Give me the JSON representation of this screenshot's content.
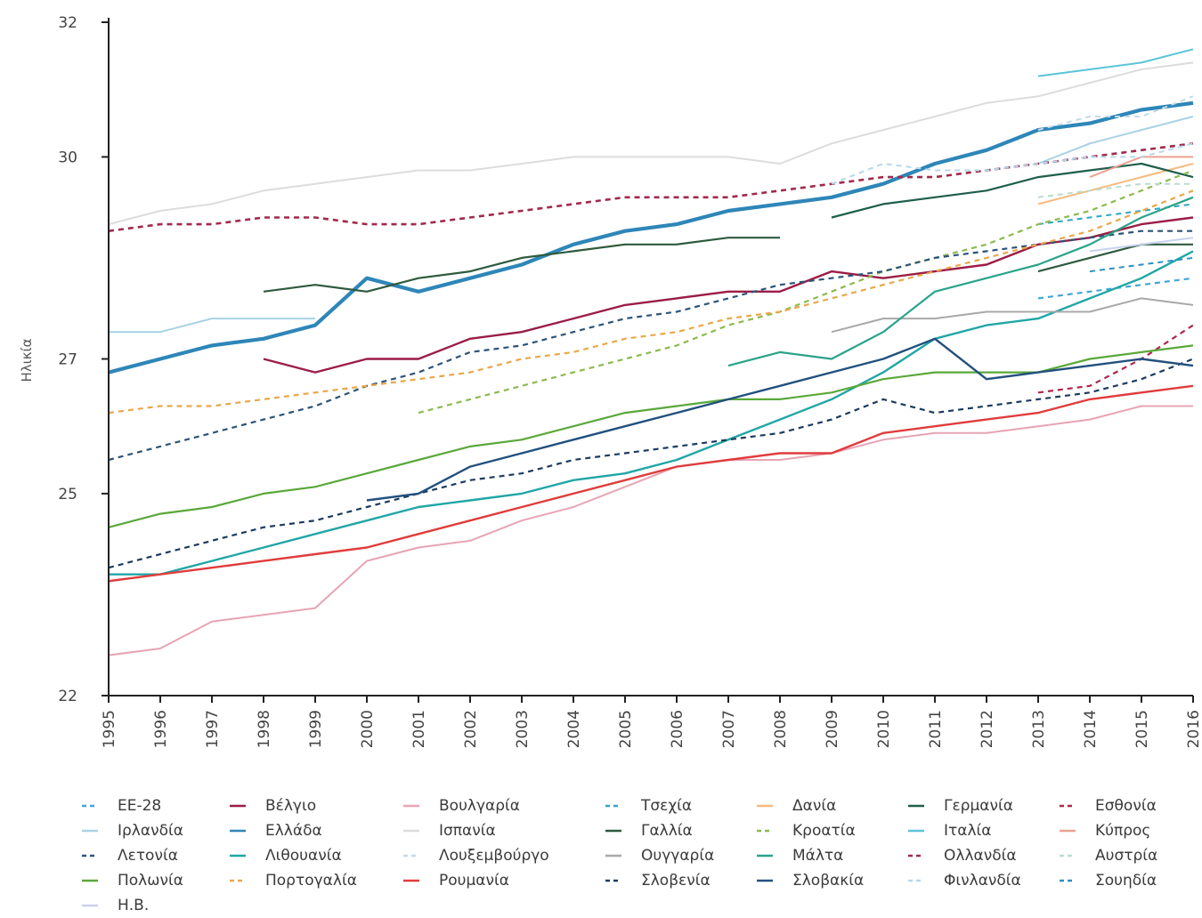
{
  "chart_data": {
    "type": "line",
    "title": "",
    "xlabel": "",
    "ylabel": "Ηλικία",
    "x": [
      1995,
      1996,
      1997,
      1998,
      1999,
      2000,
      2001,
      2002,
      2003,
      2004,
      2005,
      2006,
      2007,
      2008,
      2009,
      2010,
      2011,
      2012,
      2013,
      2014,
      2015,
      2016
    ],
    "xlim": [
      1995,
      2016
    ],
    "ylim": [
      22,
      32
    ],
    "y_ticks": [
      22,
      25,
      27,
      30,
      32
    ],
    "grid": false,
    "legend_position": "bottom",
    "series": [
      {
        "name": "ΕΕ-28",
        "color": "#41a7d6",
        "dash": true,
        "width": 2.2,
        "values": [
          null,
          null,
          null,
          null,
          null,
          null,
          null,
          null,
          null,
          null,
          null,
          null,
          null,
          null,
          null,
          null,
          null,
          null,
          27.9,
          28.0,
          28.1,
          28.2
        ]
      },
      {
        "name": "Βέλγιο",
        "color": "#9b1d45",
        "dash": false,
        "width": 2.4,
        "values": [
          null,
          null,
          null,
          27.0,
          26.8,
          27.0,
          27.0,
          27.3,
          27.4,
          27.6,
          27.8,
          27.9,
          28.0,
          28.0,
          28.3,
          28.2,
          28.3,
          28.4,
          28.7,
          28.8,
          29.0,
          29.1
        ]
      },
      {
        "name": "Βουλγαρία",
        "color": "#e7a4b4",
        "dash": false,
        "width": 2.0,
        "values": [
          22.6,
          22.7,
          23.1,
          23.2,
          23.3,
          24.0,
          24.2,
          24.3,
          24.6,
          24.8,
          25.1,
          25.4,
          25.5,
          25.5,
          25.6,
          25.8,
          25.9,
          25.9,
          26.0,
          26.1,
          26.3,
          26.3
        ]
      },
      {
        "name": "Τσεχία",
        "color": "#2da6c4",
        "dash": true,
        "width": 2.0,
        "values": [
          null,
          null,
          null,
          null,
          null,
          null,
          null,
          null,
          null,
          null,
          null,
          null,
          null,
          null,
          null,
          null,
          null,
          null,
          29.0,
          29.1,
          29.2,
          29.3
        ]
      },
      {
        "name": "Δανία",
        "color": "#f5bb7e",
        "dash": false,
        "width": 2.0,
        "values": [
          null,
          null,
          null,
          null,
          null,
          null,
          null,
          null,
          null,
          28.6,
          28.7,
          null,
          null,
          null,
          null,
          null,
          null,
          null,
          29.3,
          29.5,
          29.7,
          29.9
        ]
      },
      {
        "name": "Γερμανία",
        "color": "#1f5e4c",
        "dash": false,
        "width": 2.2,
        "values": [
          null,
          null,
          null,
          null,
          null,
          null,
          null,
          null,
          null,
          null,
          null,
          null,
          null,
          null,
          29.1,
          29.3,
          29.4,
          29.5,
          29.7,
          29.8,
          29.9,
          29.7
        ]
      },
      {
        "name": "Εσθονία",
        "color": "#b0254a",
        "dash": true,
        "width": 2.2,
        "values": [
          null,
          null,
          null,
          null,
          null,
          null,
          null,
          null,
          null,
          null,
          null,
          null,
          null,
          null,
          null,
          null,
          null,
          null,
          26.5,
          26.6,
          27.0,
          27.5
        ]
      },
      {
        "name": "Ιρλανδία",
        "color": "#a9d2e4",
        "dash": false,
        "width": 2.0,
        "values": [
          27.4,
          27.4,
          27.6,
          27.6,
          27.6,
          null,
          null,
          null,
          null,
          null,
          null,
          null,
          null,
          null,
          null,
          null,
          null,
          null,
          29.9,
          30.2,
          30.4,
          30.6
        ]
      },
      {
        "name": "Ελλάδα",
        "color": "#2e86b8",
        "dash": false,
        "width": 4.2,
        "values": [
          26.8,
          27.0,
          27.2,
          27.3,
          27.5,
          28.2,
          28.0,
          28.2,
          28.4,
          28.7,
          28.9,
          29.0,
          29.2,
          29.3,
          29.4,
          29.6,
          29.9,
          30.1,
          30.4,
          30.5,
          30.7,
          30.8
        ]
      },
      {
        "name": "Ισπανία",
        "color": "#dcdcdc",
        "dash": false,
        "width": 2.0,
        "values": [
          29.0,
          29.2,
          29.3,
          29.5,
          29.6,
          29.7,
          29.8,
          29.8,
          29.9,
          30.0,
          30.0,
          30.0,
          30.0,
          29.9,
          30.2,
          30.4,
          30.6,
          30.8,
          30.9,
          31.1,
          31.3,
          31.4
        ]
      },
      {
        "name": "Γαλλία",
        "color": "#2e5a3e",
        "dash": false,
        "width": 2.2,
        "values": [
          null,
          null,
          null,
          28.0,
          28.1,
          28.0,
          28.2,
          28.3,
          28.5,
          28.6,
          28.7,
          28.7,
          28.8,
          28.8,
          null,
          null,
          null,
          null,
          28.3,
          28.5,
          28.7,
          28.7
        ]
      },
      {
        "name": "Κροατία",
        "color": "#8cba4e",
        "dash": true,
        "width": 2.2,
        "values": [
          null,
          null,
          null,
          null,
          null,
          null,
          26.2,
          26.4,
          26.6,
          26.8,
          27.0,
          27.2,
          27.5,
          27.7,
          28.0,
          28.3,
          28.5,
          28.7,
          29.0,
          29.2,
          29.5,
          29.8
        ]
      },
      {
        "name": "Ιταλία",
        "color": "#5bc4d8",
        "dash": false,
        "width": 2.0,
        "values": [
          null,
          null,
          null,
          null,
          null,
          null,
          null,
          null,
          null,
          null,
          null,
          null,
          null,
          null,
          null,
          null,
          null,
          null,
          31.2,
          31.3,
          31.4,
          31.6
        ]
      },
      {
        "name": "Κύπρος",
        "color": "#eba292",
        "dash": false,
        "width": 2.0,
        "values": [
          null,
          null,
          null,
          null,
          null,
          null,
          null,
          null,
          null,
          null,
          null,
          null,
          null,
          null,
          null,
          null,
          null,
          null,
          null,
          29.7,
          30.0,
          30.0
        ]
      },
      {
        "name": "Λετονία",
        "color": "#2d5478",
        "dash": true,
        "width": 2.2,
        "values": [
          25.5,
          25.7,
          25.9,
          26.1,
          26.3,
          26.6,
          26.8,
          27.1,
          27.2,
          27.4,
          27.6,
          27.7,
          27.9,
          28.1,
          28.2,
          28.3,
          28.5,
          28.6,
          28.7,
          28.8,
          28.9,
          28.9
        ]
      },
      {
        "name": "Λιθουανία",
        "color": "#21a6a6",
        "dash": false,
        "width": 2.4,
        "values": [
          23.8,
          23.8,
          24.0,
          24.2,
          24.4,
          24.6,
          24.8,
          24.9,
          25.0,
          25.2,
          25.3,
          25.5,
          25.8,
          26.1,
          26.4,
          26.8,
          27.3,
          27.5,
          27.6,
          27.9,
          28.2,
          28.6
        ]
      },
      {
        "name": "Λουξεμβούργο",
        "color": "#c2dbe8",
        "dash": true,
        "width": 2.0,
        "values": [
          null,
          null,
          null,
          null,
          null,
          null,
          null,
          null,
          null,
          null,
          null,
          null,
          null,
          null,
          null,
          null,
          null,
          null,
          30.4,
          30.6,
          30.6,
          30.9
        ]
      },
      {
        "name": "Ουγγαρία",
        "color": "#a8a8a8",
        "dash": false,
        "width": 2.0,
        "values": [
          null,
          null,
          null,
          null,
          null,
          null,
          null,
          null,
          null,
          null,
          null,
          null,
          null,
          null,
          27.4,
          27.6,
          27.6,
          27.7,
          27.7,
          27.7,
          27.9,
          27.8
        ]
      },
      {
        "name": "Μάλτα",
        "color": "#2aa38a",
        "dash": false,
        "width": 2.2,
        "values": [
          null,
          null,
          null,
          null,
          null,
          null,
          null,
          null,
          null,
          null,
          null,
          null,
          26.9,
          27.1,
          27.0,
          27.4,
          28.0,
          28.2,
          28.4,
          28.7,
          29.1,
          29.4
        ]
      },
      {
        "name": "Ολλανδία",
        "color": "#a12a4c",
        "dash": true,
        "width": 2.6,
        "values": [
          28.9,
          29.0,
          29.0,
          29.1,
          29.1,
          29.0,
          29.0,
          29.1,
          29.2,
          29.3,
          29.4,
          29.4,
          29.4,
          29.5,
          29.6,
          29.7,
          29.7,
          29.8,
          29.9,
          30.0,
          30.1,
          30.2
        ]
      },
      {
        "name": "Αυστρία",
        "color": "#b8dcce",
        "dash": true,
        "width": 2.0,
        "values": [
          null,
          null,
          null,
          null,
          null,
          null,
          null,
          null,
          null,
          null,
          null,
          null,
          null,
          null,
          null,
          null,
          null,
          null,
          29.4,
          29.5,
          29.6,
          29.6
        ]
      },
      {
        "name": "Πολωνία",
        "color": "#5aa83a",
        "dash": false,
        "width": 2.2,
        "values": [
          24.5,
          24.7,
          24.8,
          25.0,
          25.1,
          25.3,
          25.5,
          25.7,
          25.8,
          26.0,
          26.2,
          26.3,
          26.4,
          26.4,
          26.5,
          26.7,
          26.8,
          26.8,
          26.8,
          27.0,
          27.1,
          27.2
        ]
      },
      {
        "name": "Πορτογαλία",
        "color": "#e8a84a",
        "dash": true,
        "width": 2.2,
        "values": [
          26.2,
          26.3,
          26.3,
          26.4,
          26.5,
          26.6,
          26.7,
          26.8,
          27.0,
          27.1,
          27.3,
          27.4,
          27.6,
          27.7,
          27.9,
          28.1,
          28.3,
          28.5,
          28.7,
          28.9,
          29.2,
          29.5
        ]
      },
      {
        "name": "Ρουμανία",
        "color": "#e03c3c",
        "dash": false,
        "width": 2.4,
        "values": [
          23.7,
          23.8,
          23.9,
          24.0,
          24.1,
          24.2,
          24.4,
          24.6,
          24.8,
          25.0,
          25.2,
          25.4,
          25.5,
          25.6,
          25.6,
          25.9,
          26.0,
          26.1,
          26.2,
          26.4,
          26.5,
          26.6
        ]
      },
      {
        "name": "Σλοβενία",
        "color": "#1d3b5e",
        "dash": true,
        "width": 2.2,
        "values": [
          23.9,
          24.1,
          24.3,
          24.5,
          24.6,
          24.8,
          25.0,
          25.2,
          25.3,
          25.5,
          25.6,
          25.7,
          25.8,
          25.9,
          26.1,
          26.4,
          26.2,
          26.3,
          26.4,
          26.5,
          26.7,
          27.0
        ]
      },
      {
        "name": "Σλοβακία",
        "color": "#22507e",
        "dash": false,
        "width": 2.4,
        "values": [
          null,
          null,
          null,
          null,
          null,
          24.9,
          25.0,
          25.4,
          25.6,
          25.8,
          26.0,
          26.2,
          26.4,
          26.6,
          26.8,
          27.0,
          27.3,
          26.7,
          26.8,
          26.9,
          27.0,
          26.9
        ]
      },
      {
        "name": "Φινλανδία",
        "color": "#b5d8ea",
        "dash": true,
        "width": 2.0,
        "values": [
          null,
          null,
          null,
          null,
          null,
          null,
          null,
          null,
          null,
          null,
          null,
          null,
          null,
          null,
          29.6,
          29.9,
          29.8,
          29.8,
          29.9,
          30.0,
          30.0,
          30.2
        ]
      },
      {
        "name": "Σουηδία",
        "color": "#2e8fc4",
        "dash": true,
        "width": 2.0,
        "values": [
          null,
          null,
          null,
          null,
          null,
          null,
          null,
          null,
          null,
          null,
          null,
          null,
          null,
          null,
          null,
          null,
          null,
          null,
          null,
          28.3,
          28.4,
          28.5
        ]
      },
      {
        "name": "Η.Β.",
        "color": "#c9d2ec",
        "dash": false,
        "width": 2.0,
        "values": [
          null,
          null,
          null,
          null,
          null,
          null,
          null,
          null,
          null,
          null,
          null,
          null,
          null,
          null,
          null,
          null,
          null,
          null,
          null,
          28.6,
          28.7,
          28.8
        ]
      }
    ]
  }
}
